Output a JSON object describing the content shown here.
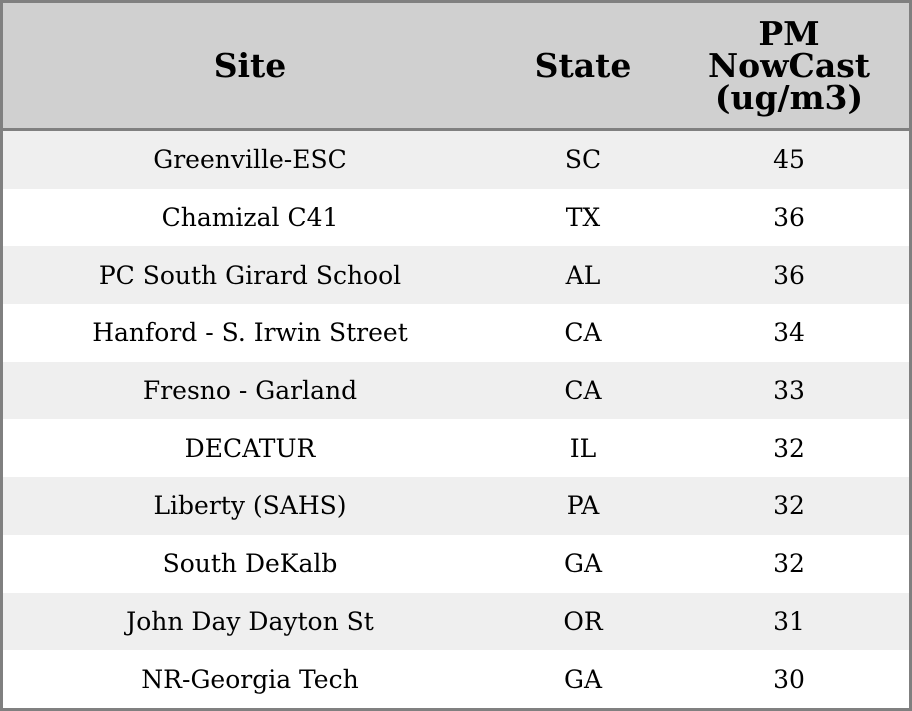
{
  "chart_data": {
    "type": "table",
    "columns": [
      "Site",
      "State",
      "PM NowCast (ug/m3)"
    ],
    "header_lines": [
      "PM",
      "NowCast",
      "(ug/m3)"
    ],
    "rows": [
      [
        "Greenville-ESC",
        "SC",
        "45"
      ],
      [
        "Chamizal C41",
        "TX",
        "36"
      ],
      [
        "PC South Girard School",
        "AL",
        "36"
      ],
      [
        "Hanford - S. Irwin Street",
        "CA",
        "34"
      ],
      [
        "Fresno - Garland",
        "CA",
        "33"
      ],
      [
        "DECATUR",
        "IL",
        "32"
      ],
      [
        "Liberty (SAHS)",
        "PA",
        "32"
      ],
      [
        "South DeKalb",
        "GA",
        "32"
      ],
      [
        "John Day Dayton St",
        "OR",
        "31"
      ],
      [
        "NR-Georgia Tech",
        "GA",
        "30"
      ]
    ]
  },
  "colors": {
    "header_bg": "#d0d0d0",
    "stripe_bg": "#efefef",
    "border": "#808080"
  }
}
